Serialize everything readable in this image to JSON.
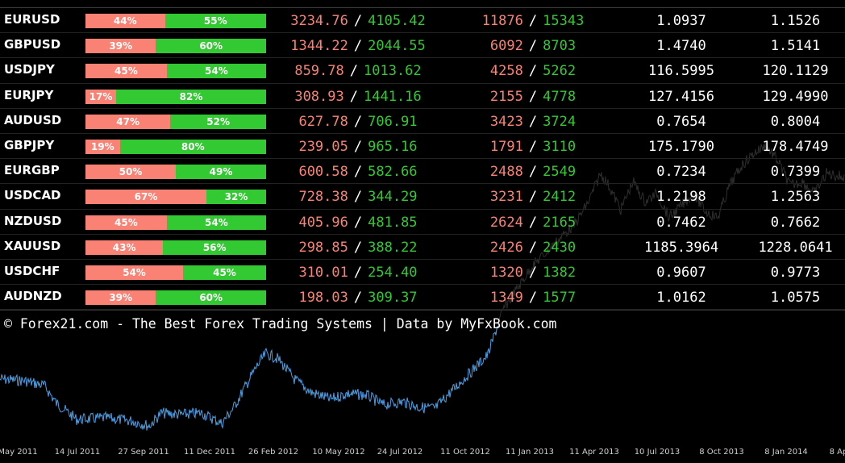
{
  "rows": [
    {
      "symbol": "EURUSD",
      "short_pct": 44,
      "long_pct": 55,
      "short_label": "44%",
      "long_label": "55%",
      "vol_short": "3234.76",
      "vol_long": "4105.42",
      "pos_short": "11876",
      "pos_long": "15343",
      "price_short": "1.0937",
      "price_long": "1.1526"
    },
    {
      "symbol": "GBPUSD",
      "short_pct": 39,
      "long_pct": 60,
      "short_label": "39%",
      "long_label": "60%",
      "vol_short": "1344.22",
      "vol_long": "2044.55",
      "pos_short": "6092",
      "pos_long": "8703",
      "price_short": "1.4740",
      "price_long": "1.5141"
    },
    {
      "symbol": "USDJPY",
      "short_pct": 45,
      "long_pct": 54,
      "short_label": "45%",
      "long_label": "54%",
      "vol_short": "859.78",
      "vol_long": "1013.62",
      "pos_short": "4258",
      "pos_long": "5262",
      "price_short": "116.5995",
      "price_long": "120.1129"
    },
    {
      "symbol": "EURJPY",
      "short_pct": 17,
      "long_pct": 82,
      "short_label": "17%",
      "long_label": "82%",
      "vol_short": "308.93",
      "vol_long": "1441.16",
      "pos_short": "2155",
      "pos_long": "4778",
      "price_short": "127.4156",
      "price_long": "129.4990"
    },
    {
      "symbol": "AUDUSD",
      "short_pct": 47,
      "long_pct": 52,
      "short_label": "47%",
      "long_label": "52%",
      "vol_short": "627.78",
      "vol_long": "706.91",
      "pos_short": "3423",
      "pos_long": "3724",
      "price_short": "0.7654",
      "price_long": "0.8004"
    },
    {
      "symbol": "GBPJPY",
      "short_pct": 19,
      "long_pct": 80,
      "short_label": "19%",
      "long_label": "80%",
      "vol_short": "239.05",
      "vol_long": "965.16",
      "pos_short": "1791",
      "pos_long": "3110",
      "price_short": "175.1790",
      "price_long": "178.4749"
    },
    {
      "symbol": "EURGBP",
      "short_pct": 50,
      "long_pct": 49,
      "short_label": "50%",
      "long_label": "49%",
      "vol_short": "600.58",
      "vol_long": "582.66",
      "pos_short": "2488",
      "pos_long": "2549",
      "price_short": "0.7234",
      "price_long": "0.7399"
    },
    {
      "symbol": "USDCAD",
      "short_pct": 67,
      "long_pct": 32,
      "short_label": "67%",
      "long_label": "32%",
      "vol_short": "728.38",
      "vol_long": "344.29",
      "pos_short": "3231",
      "pos_long": "2412",
      "price_short": "1.2198",
      "price_long": "1.2563"
    },
    {
      "symbol": "NZDUSD",
      "short_pct": 45,
      "long_pct": 54,
      "short_label": "45%",
      "long_label": "54%",
      "vol_short": "405.96",
      "vol_long": "481.85",
      "pos_short": "2624",
      "pos_long": "2165",
      "price_short": "0.7462",
      "price_long": "0.7662"
    },
    {
      "symbol": "XAUUSD",
      "short_pct": 43,
      "long_pct": 56,
      "short_label": "43%",
      "long_label": "56%",
      "vol_short": "298.85",
      "vol_long": "388.22",
      "pos_short": "2426",
      "pos_long": "2430",
      "price_short": "1185.3964",
      "price_long": "1228.0641"
    },
    {
      "symbol": "USDCHF",
      "short_pct": 54,
      "long_pct": 45,
      "short_label": "54%",
      "long_label": "45%",
      "vol_short": "310.01",
      "vol_long": "254.40",
      "pos_short": "1320",
      "pos_long": "1382",
      "price_short": "0.9607",
      "price_long": "0.9773"
    },
    {
      "symbol": "AUDNZD",
      "short_pct": 39,
      "long_pct": 60,
      "short_label": "39%",
      "long_label": "60%",
      "vol_short": "198.03",
      "vol_long": "309.37",
      "pos_short": "1349",
      "pos_long": "1577",
      "price_short": "1.0162",
      "price_long": "1.0575"
    }
  ],
  "separator": "/",
  "credit": "© Forex21.com - The Best Forex Trading Systems | Data by MyFxBook.com",
  "x_axis_labels": [
    "May 2011",
    "14 Jul 2011",
    "27 Sep 2011",
    "11 Dec 2011",
    "26 Feb 2012",
    "10 May 2012",
    "24 Jul 2012",
    "11 Oct 2012",
    "11 Jan 2013",
    "11 Apr 2013",
    "10 Jul 2013",
    "8 Oct 2013",
    "8 Jan 2014",
    "8 Ap"
  ],
  "colors": {
    "background": "#000000",
    "short": "#f98274",
    "long": "#33c933",
    "price_line": "#4aa0e6",
    "price_line_dim": "#333333"
  }
}
